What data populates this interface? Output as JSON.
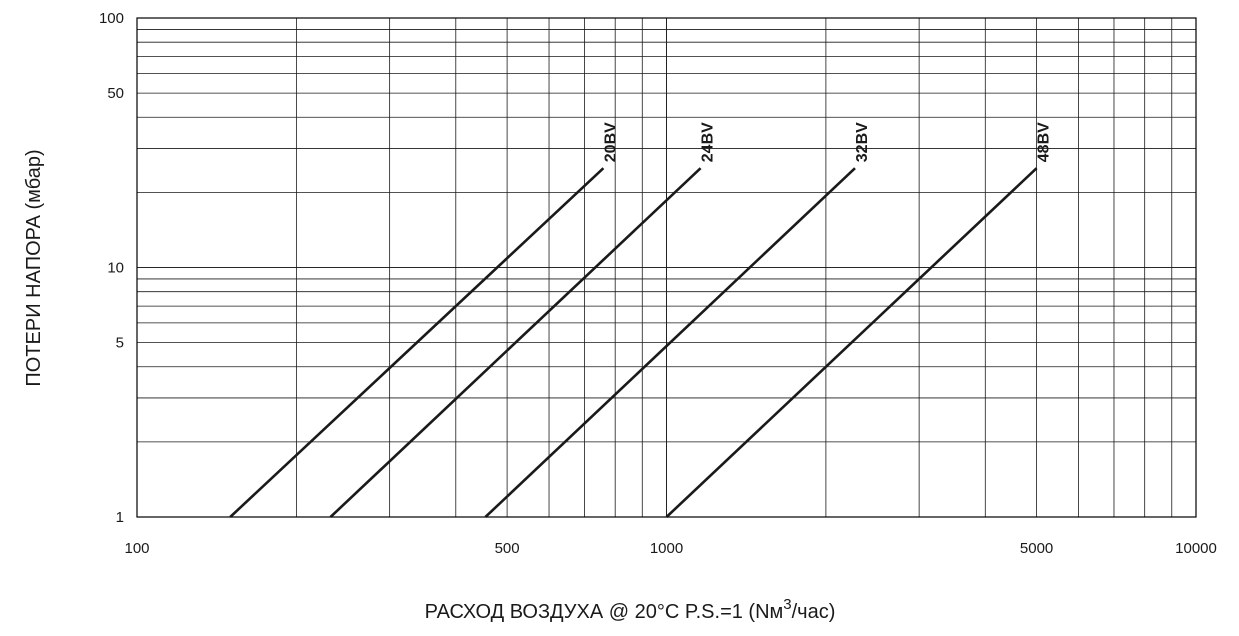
{
  "chart_data": {
    "type": "line",
    "x_scale": "log",
    "y_scale": "log",
    "xlim": [
      100,
      10000
    ],
    "ylim": [
      1,
      100
    ],
    "grid": true,
    "legend": "none",
    "title": "",
    "xlabel": {
      "prefix": "РАСХОД ВОЗДУХА @ 20°C P.S.=1 (Nм",
      "superscript": "3",
      "suffix": "/час)"
    },
    "ylabel": "ПОТЕРИ НАПОРА (мбар)",
    "x_ticks": [
      {
        "value": 100,
        "label": "100"
      },
      {
        "value": 500,
        "label": "500"
      },
      {
        "value": 1000,
        "label": "1000"
      },
      {
        "value": 5000,
        "label": "5000"
      },
      {
        "value": 10000,
        "label": "10000"
      }
    ],
    "y_ticks": [
      {
        "value": 1,
        "label": "1"
      },
      {
        "value": 5,
        "label": "5"
      },
      {
        "value": 10,
        "label": "10"
      },
      {
        "value": 50,
        "label": "50"
      },
      {
        "value": 100,
        "label": "100"
      }
    ],
    "series": [
      {
        "name": "20BV",
        "points": [
          [
            150,
            1
          ],
          [
            760,
            25
          ]
        ]
      },
      {
        "name": "24BV",
        "points": [
          [
            232,
            1
          ],
          [
            1160,
            25
          ]
        ]
      },
      {
        "name": "32BV",
        "points": [
          [
            455,
            1
          ],
          [
            2270,
            25
          ]
        ]
      },
      {
        "name": "48BV",
        "points": [
          [
            1000,
            1
          ],
          [
            5000,
            25
          ]
        ]
      }
    ]
  },
  "colors": {
    "line": "#1a1a1a",
    "background": "#ffffff"
  }
}
